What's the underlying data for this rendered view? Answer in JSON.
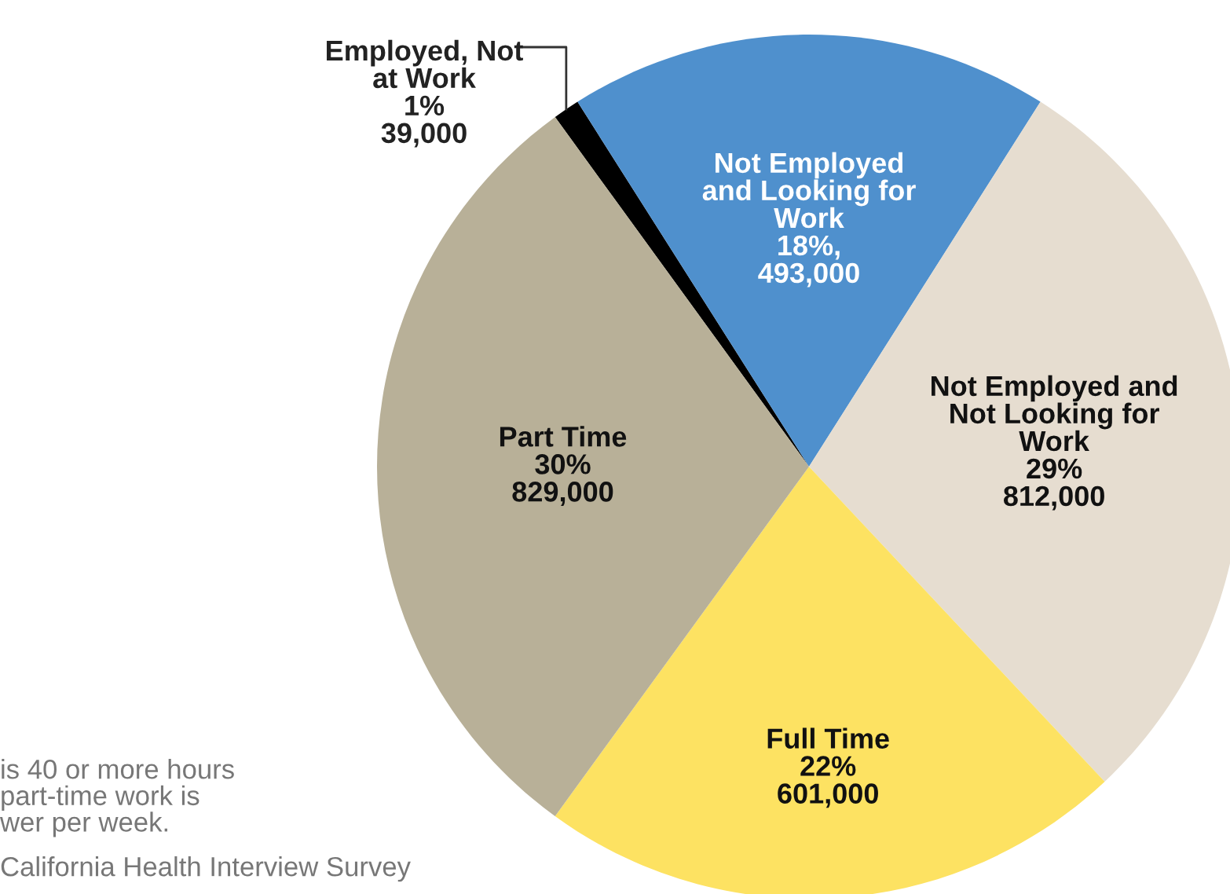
{
  "chart_data": {
    "type": "pie",
    "categories": [
      "Employed, Not\nat Work",
      "Not Employed\nand Looking for\nWork",
      "Not Employed and\nNot Looking for\nWork",
      "Full Time",
      "Part Time"
    ],
    "values": [
      1,
      18,
      29,
      22,
      30
    ],
    "value_labels": [
      "1%\n39,000",
      "18%,\n493,000",
      "29%\n812,000",
      "22%\n601,000",
      "30%\n829,000"
    ],
    "colors": [
      "#000000",
      "#4f90cd",
      "#e6ddd0",
      "#fde262",
      "#b8b098"
    ],
    "annotations": [
      "is 40 or more hours\npart-time work is\nwer per week.",
      "California Health Interview Survey"
    ]
  }
}
